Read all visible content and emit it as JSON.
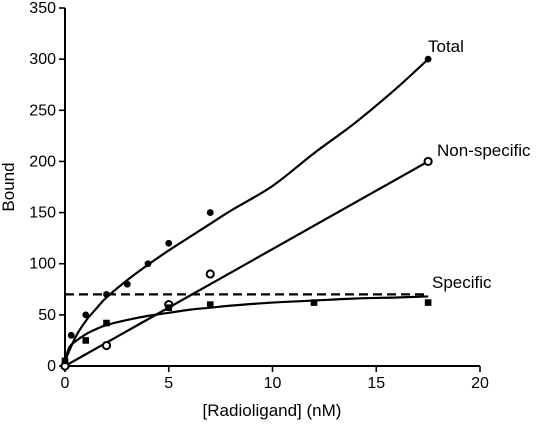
{
  "chart_data": {
    "type": "scatter",
    "title": "",
    "xlabel": "[Radioligand] (nM)",
    "ylabel": "Bound",
    "xlim": [
      0,
      20
    ],
    "ylim": [
      0,
      350
    ],
    "x_ticks": [
      0,
      5,
      10,
      15,
      20
    ],
    "y_ticks": [
      0,
      50,
      100,
      150,
      200,
      250,
      300,
      350
    ],
    "x_tick_labels": [
      "0",
      "5",
      "10",
      "15",
      "20"
    ],
    "y_tick_labels": [
      "0",
      "50",
      "100",
      "150",
      "200",
      "250",
      "300",
      "350"
    ],
    "grid": false,
    "legend": "none (series labelled at line ends)",
    "series": [
      {
        "name": "Total",
        "marker": "filled-circle",
        "points": [
          [
            0,
            0
          ],
          [
            0.3,
            30
          ],
          [
            1,
            50
          ],
          [
            2,
            70
          ],
          [
            3,
            80
          ],
          [
            4,
            100
          ],
          [
            5,
            120
          ],
          [
            7,
            150
          ],
          [
            17.5,
            300
          ]
        ],
        "fit": [
          [
            0,
            5
          ],
          [
            0.5,
            28
          ],
          [
            1,
            44
          ],
          [
            1.5,
            56
          ],
          [
            2,
            67
          ],
          [
            3,
            84
          ],
          [
            4,
            99
          ],
          [
            5,
            113
          ],
          [
            6,
            126
          ],
          [
            7,
            139
          ],
          [
            8,
            152
          ],
          [
            10,
            176
          ],
          [
            12,
            208
          ],
          [
            14,
            238
          ],
          [
            16,
            272
          ],
          [
            17.5,
            300
          ]
        ]
      },
      {
        "name": "Non-specific",
        "marker": "open-circle",
        "points": [
          [
            0,
            0
          ],
          [
            2,
            20
          ],
          [
            5,
            60
          ],
          [
            7,
            90
          ],
          [
            17.5,
            200
          ]
        ],
        "fit": [
          [
            0,
            0
          ],
          [
            17.5,
            200
          ]
        ]
      },
      {
        "name": "Specific",
        "marker": "filled-square",
        "points": [
          [
            0,
            5
          ],
          [
            1,
            25
          ],
          [
            2,
            42
          ],
          [
            5,
            57
          ],
          [
            7,
            60
          ],
          [
            12,
            62
          ],
          [
            17.5,
            62
          ]
        ],
        "fit": [
          [
            0,
            5
          ],
          [
            0.2,
            18
          ],
          [
            0.5,
            24
          ],
          [
            1,
            31
          ],
          [
            1.5,
            36
          ],
          [
            2,
            40
          ],
          [
            3,
            45
          ],
          [
            4,
            49
          ],
          [
            5,
            52
          ],
          [
            6,
            55
          ],
          [
            7,
            57
          ],
          [
            8,
            59
          ],
          [
            10,
            62
          ],
          [
            12,
            64
          ],
          [
            14,
            66
          ],
          [
            16,
            67
          ],
          [
            17.5,
            68
          ]
        ]
      }
    ],
    "reference_line": {
      "style": "dashed",
      "y": 70,
      "x_range": [
        0,
        17.5
      ]
    }
  }
}
